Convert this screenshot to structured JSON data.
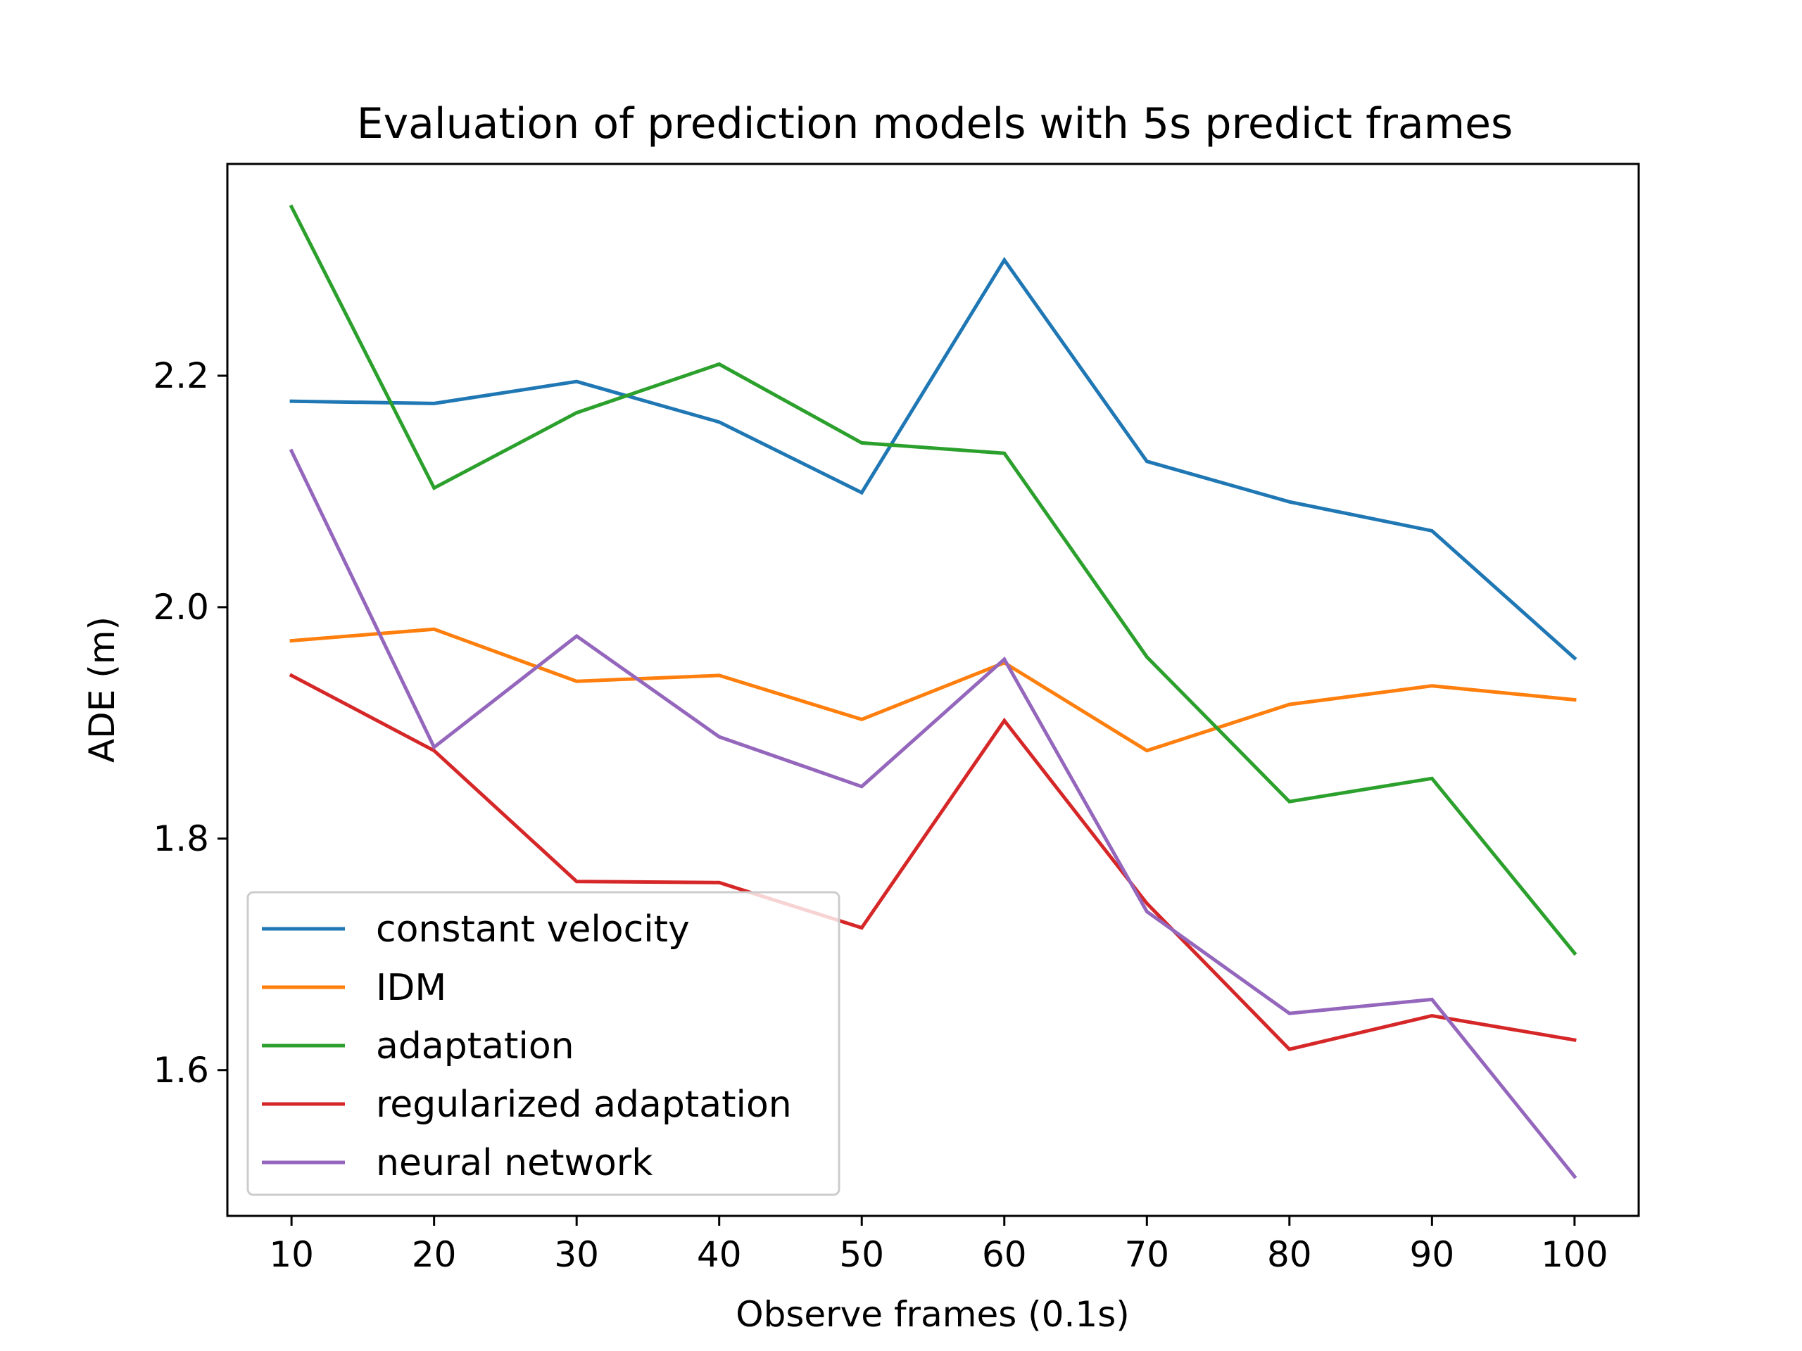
{
  "chart_data": {
    "type": "line",
    "title": "Evaluation of prediction models with 5s predict frames",
    "xlabel": "Observe frames (0.1s)",
    "ylabel": "ADE (m)",
    "x": [
      10,
      20,
      30,
      40,
      50,
      60,
      70,
      80,
      90,
      100
    ],
    "x_ticks": [
      "10",
      "20",
      "30",
      "40",
      "50",
      "60",
      "70",
      "80",
      "90",
      "100"
    ],
    "xlim": [
      5.5,
      104.5
    ],
    "y_ticks": [
      "1.6",
      "1.8",
      "2.0",
      "2.2"
    ],
    "y_tick_values": [
      1.6,
      1.8,
      2.0,
      2.2
    ],
    "ylim": [
      1.474,
      2.383
    ],
    "grid": false,
    "legend_position": "lower-left",
    "series": [
      {
        "name": "constant velocity",
        "color": "#1f77b4",
        "values": [
          2.178,
          2.176,
          2.195,
          2.16,
          2.099,
          2.3,
          2.126,
          2.091,
          2.066,
          1.956
        ]
      },
      {
        "name": "IDM",
        "color": "#ff7f0e",
        "values": [
          1.971,
          1.981,
          1.936,
          1.941,
          1.903,
          1.952,
          1.876,
          1.916,
          1.932,
          1.92
        ]
      },
      {
        "name": "adaptation",
        "color": "#2ca02c",
        "values": [
          2.346,
          2.103,
          2.168,
          2.21,
          2.142,
          2.133,
          1.957,
          1.832,
          1.852,
          1.701
        ]
      },
      {
        "name": "regularized adaptation",
        "color": "#d62728",
        "values": [
          1.941,
          1.876,
          1.763,
          1.762,
          1.723,
          1.902,
          1.744,
          1.618,
          1.647,
          1.626
        ]
      },
      {
        "name": "neural network",
        "color": "#9467bd",
        "values": [
          2.135,
          1.879,
          1.975,
          1.888,
          1.845,
          1.955,
          1.737,
          1.649,
          1.661,
          1.508
        ]
      }
    ]
  }
}
